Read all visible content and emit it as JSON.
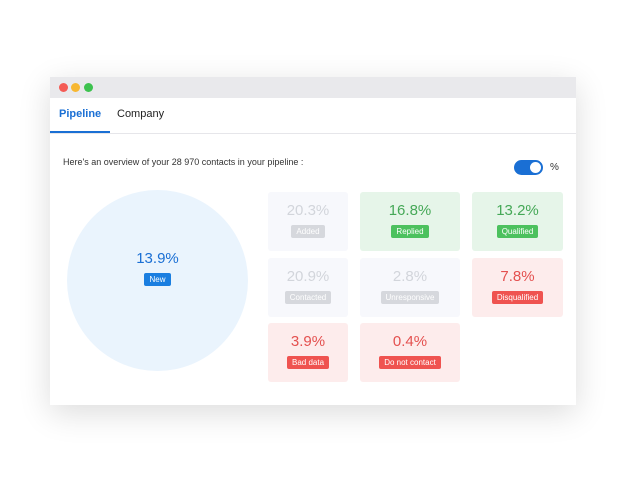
{
  "tabs": [
    {
      "label": "Pipeline",
      "active": true
    },
    {
      "label": "Company",
      "active": false
    }
  ],
  "intro": "Here's an overview of your 28 970 contacts in your pipeline :",
  "toggle": {
    "label": "%",
    "on": true
  },
  "pipeline": {
    "main": {
      "value": "13.9%",
      "label": "New"
    },
    "stages": [
      {
        "value": "20.3%",
        "label": "Added",
        "tone": "gray"
      },
      {
        "value": "16.8%",
        "label": "Replied",
        "tone": "green"
      },
      {
        "value": "13.2%",
        "label": "Qualified",
        "tone": "green"
      },
      {
        "value": "20.9%",
        "label": "Contacted",
        "tone": "gray"
      },
      {
        "value": "2.8%",
        "label": "Unresponsive",
        "tone": "gray"
      },
      {
        "value": "7.8%",
        "label": "Disqualified",
        "tone": "red"
      },
      {
        "value": "3.9%",
        "label": "Bad data",
        "tone": "red"
      },
      {
        "value": "0.4%",
        "label": "Do not contact",
        "tone": "red"
      }
    ]
  }
}
